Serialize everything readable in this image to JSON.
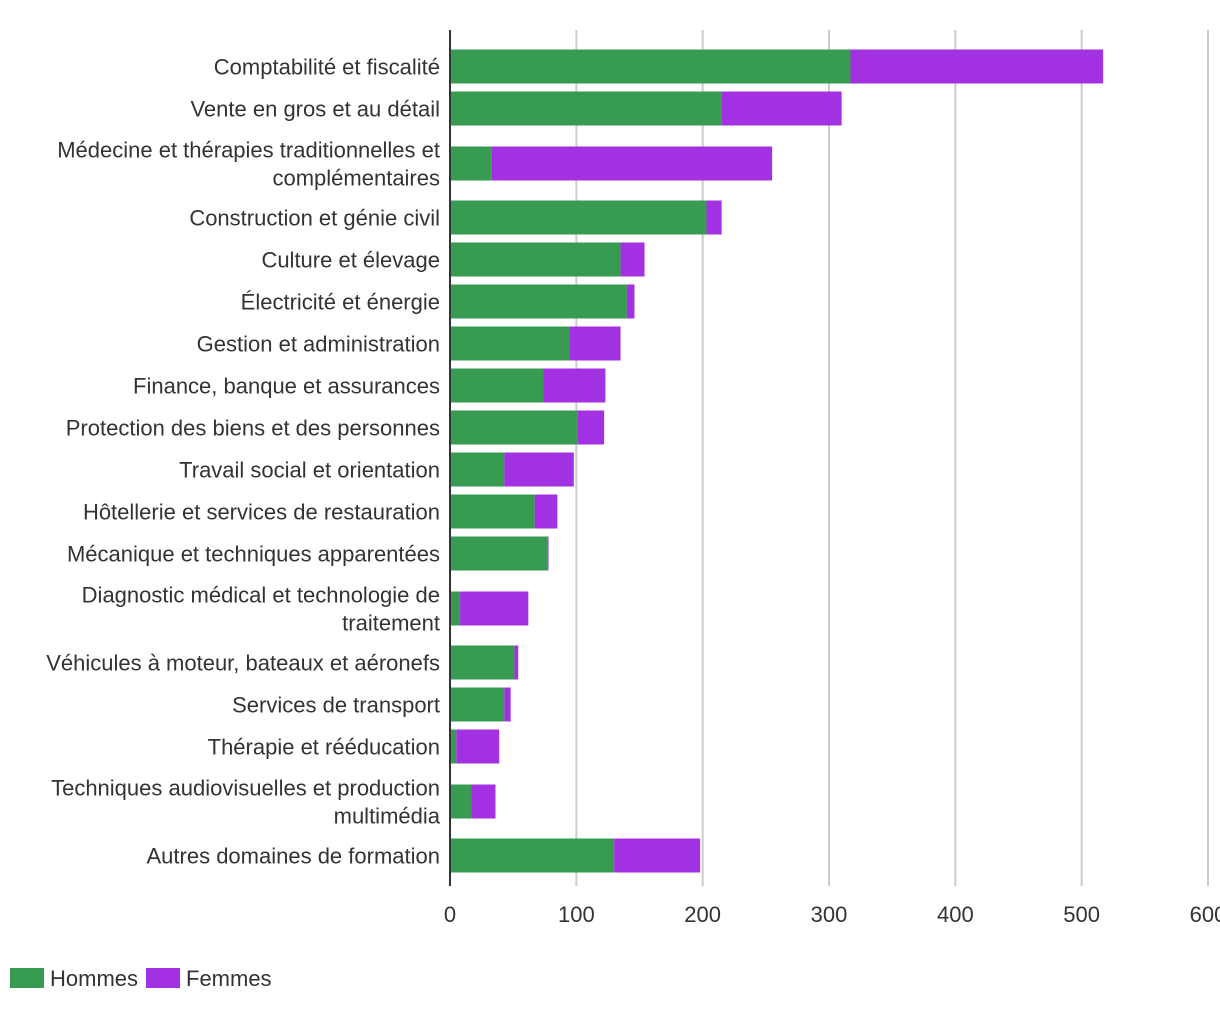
{
  "chart_data": {
    "type": "bar",
    "orientation": "horizontal",
    "stacked": true,
    "categories": [
      [
        "Comptabilité et fiscalité"
      ],
      [
        "Vente en gros et au détail"
      ],
      [
        "Médecine et thérapies traditionnelles et",
        "complémentaires"
      ],
      [
        "Construction et génie civil"
      ],
      [
        "Culture et élevage"
      ],
      [
        "Électricité et énergie"
      ],
      [
        "Gestion et administration"
      ],
      [
        "Finance, banque et assurances"
      ],
      [
        "Protection des biens et des personnes"
      ],
      [
        "Travail social et orientation"
      ],
      [
        "Hôtellerie et services de restauration"
      ],
      [
        "Mécanique et techniques apparentées"
      ],
      [
        "Diagnostic médical et technologie de",
        "traitement"
      ],
      [
        "Véhicules à moteur, bateaux et aéronefs"
      ],
      [
        "Services de transport"
      ],
      [
        "Thérapie et rééducation"
      ],
      [
        "Techniques audiovisuelles et production",
        "multimédia"
      ],
      [
        "Autres domaines de formation"
      ]
    ],
    "series": [
      {
        "name": "Hommes",
        "color": "#379b52",
        "values": [
          317,
          215,
          33,
          203,
          135,
          140,
          95,
          74,
          101,
          43,
          67,
          77,
          8,
          51,
          43,
          5,
          17,
          130
        ]
      },
      {
        "name": "Femmes",
        "color": "#a131e1",
        "values": [
          200,
          95,
          222,
          12,
          19,
          6,
          40,
          49,
          21,
          55,
          18,
          1,
          54,
          3,
          5,
          34,
          19,
          68
        ]
      }
    ],
    "xlim": [
      0,
      600
    ],
    "xticks": [
      "0",
      "100",
      "200",
      "300",
      "400",
      "500",
      "600"
    ],
    "xtick_values": [
      0,
      100,
      200,
      300,
      400,
      500,
      600
    ],
    "grid": true,
    "legend_position": "bottom-left",
    "title": "",
    "xlabel": "",
    "ylabel": ""
  }
}
